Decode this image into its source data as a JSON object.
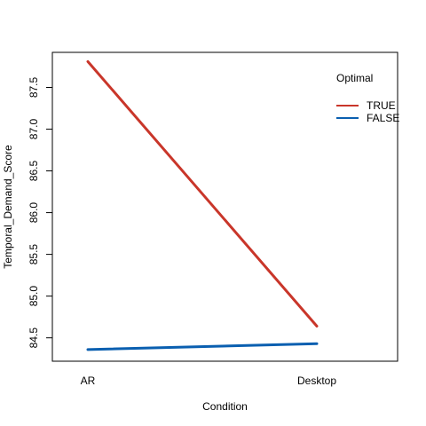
{
  "chart_data": {
    "type": "line",
    "title": "",
    "xlabel": "Condition",
    "ylabel": "Temporal_Demand_Score",
    "categories": [
      "AR",
      "Desktop"
    ],
    "ylim": [
      84.22,
      87.92
    ],
    "yticks": [
      "84.5",
      "85.0",
      "85.5",
      "86.0",
      "86.5",
      "87.0",
      "87.5"
    ],
    "grid": false,
    "legend_position": "top-right",
    "legend_title": "Optimal",
    "series": [
      {
        "name": "TRUE",
        "values": [
          87.81,
          84.64
        ],
        "color": "#c9362a"
      },
      {
        "name": "FALSE",
        "values": [
          84.36,
          84.43
        ],
        "color": "#0a5fb0"
      }
    ]
  }
}
